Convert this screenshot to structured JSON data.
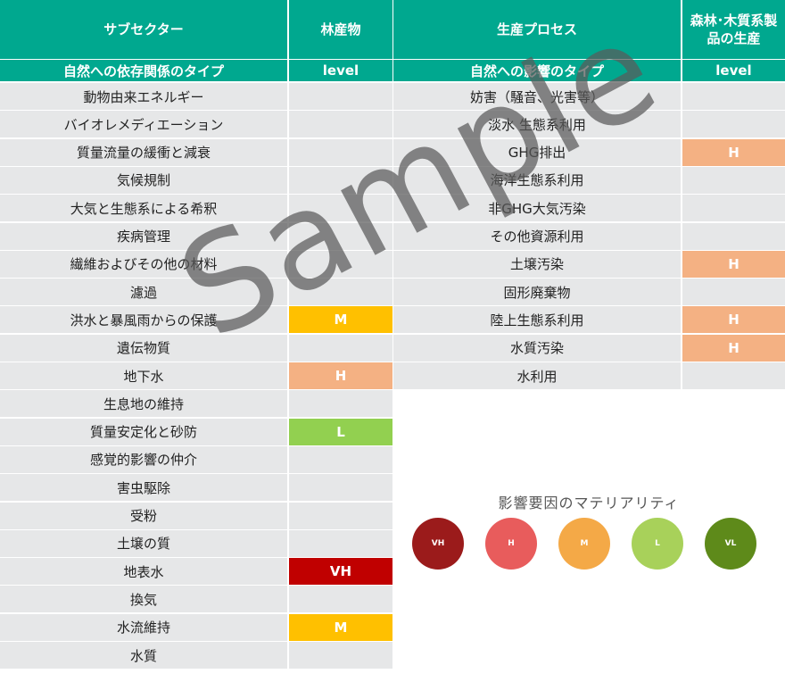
{
  "header": {
    "col1": "サブセクター",
    "col2": "林産物",
    "col3": "生産プロセス",
    "col4": "森林･木質系製品の生産"
  },
  "subheader": {
    "col1": "自然への依存関係のタイプ",
    "col2": "level",
    "col3": "自然への影響のタイプ",
    "col4": "level"
  },
  "dependencies": [
    {
      "label": "動物由来エネルギー",
      "level": ""
    },
    {
      "label": "バイオレメディエーション",
      "level": ""
    },
    {
      "label": "質量流量の緩衝と減衰",
      "level": ""
    },
    {
      "label": "気候規制",
      "level": ""
    },
    {
      "label": "大気と生態系による希釈",
      "level": ""
    },
    {
      "label": "疾病管理",
      "level": ""
    },
    {
      "label": "繊維およびその他の材料",
      "level": ""
    },
    {
      "label": "濾過",
      "level": ""
    },
    {
      "label": "洪水と暴風雨からの保護",
      "level": "M"
    },
    {
      "label": "遺伝物質",
      "level": ""
    },
    {
      "label": "地下水",
      "level": "H"
    },
    {
      "label": "生息地の維持",
      "level": ""
    },
    {
      "label": "質量安定化と砂防",
      "level": "L"
    },
    {
      "label": "感覚的影響の仲介",
      "level": ""
    },
    {
      "label": "害虫駆除",
      "level": ""
    },
    {
      "label": "受粉",
      "level": ""
    },
    {
      "label": "土壌の質",
      "level": ""
    },
    {
      "label": "地表水",
      "level": "VH"
    },
    {
      "label": "換気",
      "level": ""
    },
    {
      "label": "水流維持",
      "level": "M"
    },
    {
      "label": "水質",
      "level": ""
    }
  ],
  "impacts": [
    {
      "label": "妨害（騒音、光害等）",
      "level": ""
    },
    {
      "label": "淡水 生態系利用",
      "level": ""
    },
    {
      "label": "GHG排出",
      "level": "H"
    },
    {
      "label": "海洋生態系利用",
      "level": ""
    },
    {
      "label": "非GHG大気汚染",
      "level": ""
    },
    {
      "label": "その他資源利用",
      "level": ""
    },
    {
      "label": "土壌汚染",
      "level": "H"
    },
    {
      "label": "固形廃棄物",
      "level": ""
    },
    {
      "label": "陸上生態系利用",
      "level": "H"
    },
    {
      "label": "水質汚染",
      "level": "H"
    },
    {
      "label": "水利用",
      "level": ""
    }
  ],
  "level_colors": {
    "VH": "#c00000",
    "H": "#f4b183",
    "M": "#ffc000",
    "L": "#92d050",
    "VL": "#5a8a1e"
  },
  "legend": {
    "title": "影響要因のマテリアリティ",
    "items": [
      {
        "key": "VH",
        "color": "#9b1b1b"
      },
      {
        "key": "H",
        "color": "#e85c5c"
      },
      {
        "key": "M",
        "color": "#f4a947"
      },
      {
        "key": "L",
        "color": "#a8d15a"
      },
      {
        "key": "VL",
        "color": "#5e8a1a"
      }
    ]
  },
  "watermark": "Sample"
}
